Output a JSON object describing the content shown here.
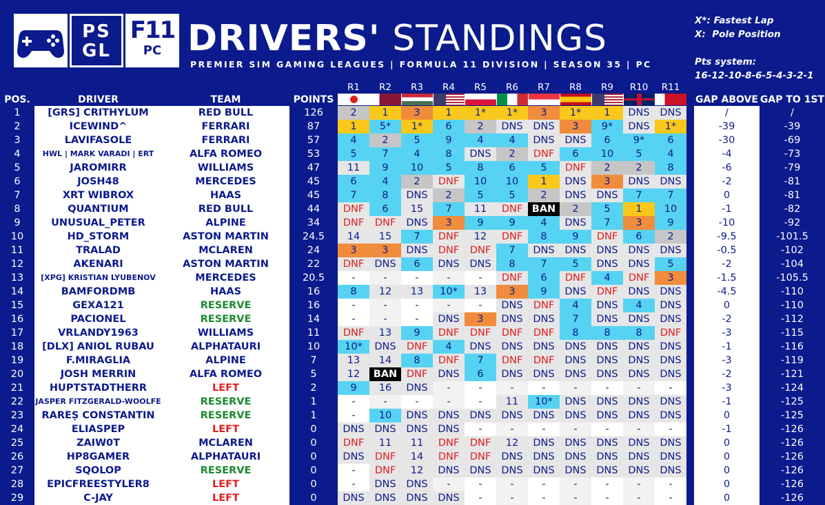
{
  "header": {
    "title_bold": "DRIVERS'",
    "title_rest": " STANDINGS",
    "subtitle": "PREMIER SIM GAMING LEAGUES | FORMULA 11 DIVISION | SEASON 35 | PC",
    "logo_psgl": "PS\nGL",
    "logo_f11": "F11",
    "logo_pc": "PC",
    "note1": "X*: Fastest Lap",
    "note2": "X:  Pole Position",
    "note3": "Pts system:",
    "note4": "16-12-10-8-6-5-4-3-2-1"
  },
  "columns": {
    "pos": "POS.",
    "driver": "DRIVER",
    "team": "TEAM",
    "points": "POINTS",
    "gap_above": "GAP ABOVE",
    "gap_first": "GAP TO 1ST"
  },
  "rounds": [
    "R1",
    "R2",
    "R3",
    "R4",
    "R5",
    "R6",
    "R7",
    "R8",
    "R9",
    "R10",
    "R11"
  ],
  "colors": {
    "bg": "#0b1a8c",
    "gold": "#f9c81a",
    "silver": "#c6c6c6",
    "bronze": "#f08c3c",
    "points": "#56d3f2",
    "nopoints": "#e6e6e6",
    "ban": "#000000",
    "dnf_text": "#e01c1c",
    "reserve": "#1a8a2e",
    "left": "#e01c1c"
  },
  "rows": [
    {
      "pos": "1",
      "driver": "[GRS] CRITHYLUM",
      "team": "RED BULL",
      "pts": "126",
      "gap_above": "/",
      "gap_first": "/",
      "r": [
        "2",
        "1",
        "3",
        "1",
        "1*",
        "1*",
        "3",
        "1*",
        "1",
        "DNS",
        "DNS"
      ]
    },
    {
      "pos": "2",
      "driver": "ICEWIND^",
      "team": "FERRARI",
      "pts": "87",
      "gap_above": "-39",
      "gap_first": "-39",
      "r": [
        "1",
        "5*",
        "1*",
        "6",
        "2",
        "DNS",
        "DNS",
        "3",
        "9*",
        "DNS",
        "1*"
      ]
    },
    {
      "pos": "3",
      "driver": "LAVIFASOLE",
      "team": "FERRARI",
      "pts": "57",
      "gap_above": "-30",
      "gap_first": "-69",
      "r": [
        "4",
        "2",
        "5",
        "9",
        "4",
        "4",
        "DNS",
        "DNS",
        "6",
        "9*",
        "6"
      ]
    },
    {
      "pos": "4",
      "driver": "HWL | MARK VARADI | ERT",
      "team": "ALFA ROMEO",
      "pts": "53",
      "gap_above": "-4",
      "gap_first": "-73",
      "r": [
        "5",
        "7",
        "4",
        "8",
        "DNS",
        "2",
        "DNF",
        "6",
        "10",
        "5",
        "4"
      ]
    },
    {
      "pos": "5",
      "driver": "JAROMIRR",
      "team": "WILLIAMS",
      "pts": "47",
      "gap_above": "-6",
      "gap_first": "-79",
      "r": [
        "11",
        "9",
        "10",
        "5",
        "8",
        "6",
        "5",
        "DNF",
        "2",
        "2",
        "8"
      ]
    },
    {
      "pos": "6",
      "driver": "JOSH48",
      "team": "MERCEDES",
      "pts": "45",
      "gap_above": "-2",
      "gap_first": "-81",
      "r": [
        "6",
        "4",
        "2",
        "DNF",
        "10",
        "10",
        "1",
        "DNS",
        "3",
        "DNS",
        "DNS"
      ]
    },
    {
      "pos": "7",
      "driver": "XRT WIBROX",
      "team": "HAAS",
      "pts": "45",
      "gap_above": "0",
      "gap_first": "-81",
      "r": [
        "7",
        "8",
        "DNS",
        "2",
        "5",
        "5",
        "2",
        "DNS",
        "DNS",
        "7",
        "7"
      ]
    },
    {
      "pos": "8",
      "driver": "QUANTIUM",
      "team": "RED BULL",
      "pts": "44",
      "gap_above": "-1",
      "gap_first": "-82",
      "r": [
        "DNF",
        "6",
        "15",
        "7",
        "11",
        "DNF",
        "BAN",
        "2",
        "5",
        "1",
        "10"
      ]
    },
    {
      "pos": "9",
      "driver": "UNUSUAL_PETER",
      "team": "ALPINE",
      "pts": "34",
      "gap_above": "-10",
      "gap_first": "-92",
      "r": [
        "DNF",
        "DNF",
        "DNS",
        "3",
        "9",
        "9",
        "4",
        "DNS",
        "7",
        "3",
        "9"
      ]
    },
    {
      "pos": "10",
      "driver": "HD_STORM",
      "team": "ASTON MARTIN",
      "pts": "24.5",
      "gap_above": "-9.5",
      "gap_first": "-101.5",
      "r": [
        "14",
        "15",
        "7",
        "DNF",
        "12",
        "DNF",
        "8",
        "9",
        "DNF",
        "6",
        "2"
      ]
    },
    {
      "pos": "11",
      "driver": "TRALAD",
      "team": "MCLAREN",
      "pts": "24",
      "gap_above": "-0.5",
      "gap_first": "-102",
      "r": [
        "3",
        "3",
        "DNS",
        "DNF",
        "DNF",
        "7",
        "DNS",
        "DNS",
        "DNS",
        "DNS",
        "DNS"
      ]
    },
    {
      "pos": "12",
      "driver": "AKENARI",
      "team": "ASTON MARTIN",
      "pts": "22",
      "gap_above": "-2",
      "gap_first": "-104",
      "r": [
        "DNF",
        "DNS",
        "6",
        "DNS",
        "DNS",
        "8",
        "7",
        "5",
        "DNS",
        "DNS",
        "5"
      ]
    },
    {
      "pos": "13",
      "driver": "[XPG] KRISTIAN LYUBENOV",
      "team": "MERCEDES",
      "pts": "20.5",
      "gap_above": "-1.5",
      "gap_first": "-105.5",
      "r": [
        "-",
        "-",
        "-",
        "-",
        "-",
        "DNF",
        "6",
        "DNF",
        "4",
        "DNF",
        "3"
      ]
    },
    {
      "pos": "14",
      "driver": "BAMFORDMB",
      "team": "HAAS",
      "pts": "16",
      "gap_above": "-4.5",
      "gap_first": "-110",
      "r": [
        "8",
        "12",
        "13",
        "10*",
        "13",
        "3",
        "9",
        "DNS",
        "DNF",
        "DNS",
        "DNS"
      ]
    },
    {
      "pos": "15",
      "driver": "GEXA121",
      "team": "RESERVE",
      "pts": "16",
      "gap_above": "0",
      "gap_first": "-110",
      "r": [
        "-",
        "-",
        "-",
        "-",
        "-",
        "DNS",
        "DNF",
        "4",
        "DNS",
        "4",
        "DNS"
      ]
    },
    {
      "pos": "16",
      "driver": "PACIONEL",
      "team": "RESERVE",
      "pts": "14",
      "gap_above": "-2",
      "gap_first": "-112",
      "r": [
        "-",
        "-",
        "-",
        "DNS",
        "3",
        "DNS",
        "DNS",
        "7",
        "DNS",
        "DNS",
        "DNS"
      ]
    },
    {
      "pos": "17",
      "driver": "VRLANDY1963",
      "team": "WILLIAMS",
      "pts": "11",
      "gap_above": "-3",
      "gap_first": "-115",
      "r": [
        "DNF",
        "13",
        "9",
        "DNF",
        "DNF",
        "DNF",
        "DNF",
        "8",
        "8",
        "8",
        "DNF"
      ]
    },
    {
      "pos": "18",
      "driver": "[DLX] ANIOL RUBAU",
      "team": "ALPHATAURI",
      "pts": "10",
      "gap_above": "-1",
      "gap_first": "-116",
      "r": [
        "10*",
        "DNS",
        "DNF",
        "4",
        "DNS",
        "DNS",
        "DNS",
        "DNS",
        "DNS",
        "DNS",
        "DNS"
      ]
    },
    {
      "pos": "19",
      "driver": "F.MIRAGLIA",
      "team": "ALPINE",
      "pts": "7",
      "gap_above": "-3",
      "gap_first": "-119",
      "r": [
        "13",
        "14",
        "8",
        "DNF",
        "7",
        "DNF",
        "DNF",
        "DNS",
        "DNS",
        "DNS",
        "DNS"
      ]
    },
    {
      "pos": "20",
      "driver": "JOSH MERRIN",
      "team": "ALFA ROMEO",
      "pts": "5",
      "gap_above": "-2",
      "gap_first": "-121",
      "r": [
        "12",
        "BAN",
        "DNF",
        "DNS",
        "6",
        "DNS",
        "DNS",
        "DNS",
        "DNS",
        "DNS",
        "DNS"
      ]
    },
    {
      "pos": "21",
      "driver": "HUPTSTADTHERR",
      "team": "LEFT",
      "pts": "2",
      "gap_above": "-3",
      "gap_first": "-124",
      "r": [
        "9",
        "16",
        "DNS",
        "-",
        "-",
        "-",
        "-",
        "-",
        "-",
        "-",
        "-"
      ]
    },
    {
      "pos": "22",
      "driver": "JASPER FITZGERALD-WOOLFE",
      "team": "RESERVE",
      "pts": "1",
      "gap_above": "-1",
      "gap_first": "-125",
      "r": [
        "-",
        "-",
        "-",
        "-",
        "-",
        "11",
        "10*",
        "DNS",
        "DNS",
        "DNS",
        "DNS"
      ]
    },
    {
      "pos": "23",
      "driver": "RAREȘ CONSTANTIN",
      "team": "RESERVE",
      "pts": "1",
      "gap_above": "0",
      "gap_first": "-125",
      "r": [
        "-",
        "10",
        "DNS",
        "DNS",
        "DNS",
        "DNS",
        "DNS",
        "DNS",
        "DNS",
        "DNS",
        "DNS"
      ]
    },
    {
      "pos": "24",
      "driver": "ELIASPEP",
      "team": "LEFT",
      "pts": "0",
      "gap_above": "-1",
      "gap_first": "-126",
      "r": [
        "DNS",
        "DNS",
        "DNS",
        "DNS",
        "-",
        "-",
        "-",
        "-",
        "-",
        "-",
        "-"
      ]
    },
    {
      "pos": "25",
      "driver": "ZAIW0T",
      "team": "MCLAREN",
      "pts": "0",
      "gap_above": "0",
      "gap_first": "-126",
      "r": [
        "DNF",
        "11",
        "11",
        "DNF",
        "DNF",
        "12",
        "DNS",
        "DNS",
        "DNS",
        "DNS",
        "DNS"
      ]
    },
    {
      "pos": "26",
      "driver": "HP8GAMER",
      "team": "ALPHATAURI",
      "pts": "0",
      "gap_above": "0",
      "gap_first": "-126",
      "r": [
        "DNS",
        "DNF",
        "14",
        "DNF",
        "DNF",
        "DNS",
        "DNS",
        "DNS",
        "DNS",
        "DNS",
        "DNS"
      ]
    },
    {
      "pos": "27",
      "driver": "SQOLOP",
      "team": "RESERVE",
      "pts": "0",
      "gap_above": "0",
      "gap_first": "-126",
      "r": [
        "-",
        "DNF",
        "12",
        "DNS",
        "DNS",
        "DNS",
        "DNS",
        "DNS",
        "DNS",
        "DNS",
        "DNS"
      ]
    },
    {
      "pos": "28",
      "driver": "EPICFREESTYLER8",
      "team": "LEFT",
      "pts": "0",
      "gap_above": "0",
      "gap_first": "-126",
      "r": [
        "-",
        "DNS",
        "DNS",
        "-",
        "-",
        "-",
        "-",
        "-",
        "-",
        "-",
        "-"
      ]
    },
    {
      "pos": "29",
      "driver": "C-JAY",
      "team": "LEFT",
      "pts": "0",
      "gap_above": "0",
      "gap_first": "-126",
      "r": [
        "DNS",
        "DNS",
        "DNS",
        "DNS",
        "-",
        "-",
        "-",
        "-",
        "-",
        "-",
        "-"
      ]
    }
  ]
}
